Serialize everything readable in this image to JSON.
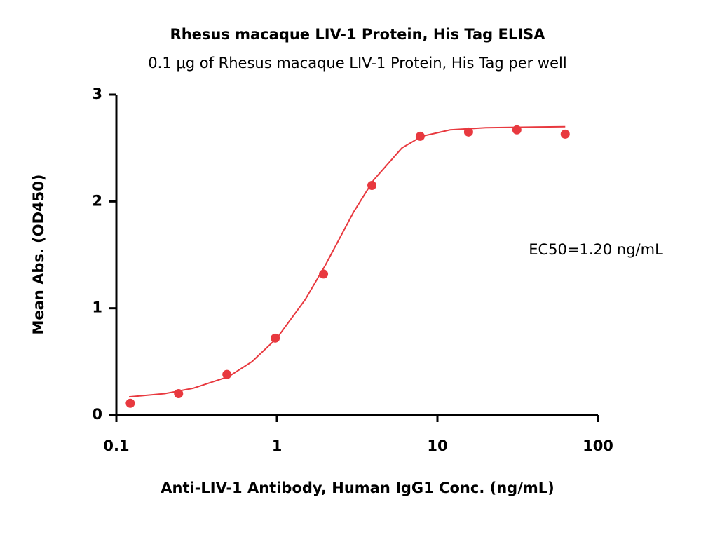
{
  "chart_data": {
    "type": "scatter",
    "title": "Rhesus macaque LIV-1 Protein, His Tag ELISA",
    "subtitle": "0.1 μg of Rhesus macaque LIV-1 Protein, His Tag per well",
    "x_label": "Anti-LIV-1 Antibody, Human IgG1 Conc. (ng/mL)",
    "y_label": "Mean Abs. (OD450)",
    "annotation": "EC50=1.20  ng/mL",
    "xscale": "log",
    "xlim": [
      0.1,
      100
    ],
    "xticks": [
      0.1,
      1,
      10,
      100
    ],
    "ylim": [
      0,
      3
    ],
    "yticks": [
      0,
      1,
      2,
      3
    ],
    "series": [
      {
        "style": "markers",
        "color": "#e8393f",
        "x": [
          0.1221,
          0.2441,
          0.4883,
          0.9766,
          1.953,
          3.906,
          7.8125,
          15.625,
          31.25,
          62.5
        ],
        "values": [
          0.11,
          0.2,
          0.38,
          0.72,
          1.32,
          2.15,
          2.61,
          2.65,
          2.67,
          2.63
        ]
      },
      {
        "style": "line",
        "color": "#e8393f",
        "x": [
          0.12,
          0.2,
          0.3,
          0.5,
          0.7,
          1,
          1.5,
          2,
          3,
          4,
          6,
          8,
          12,
          20,
          62.5
        ],
        "values": [
          0.17,
          0.2,
          0.25,
          0.36,
          0.5,
          0.72,
          1.08,
          1.4,
          1.9,
          2.2,
          2.5,
          2.61,
          2.67,
          2.69,
          2.7
        ]
      }
    ]
  }
}
